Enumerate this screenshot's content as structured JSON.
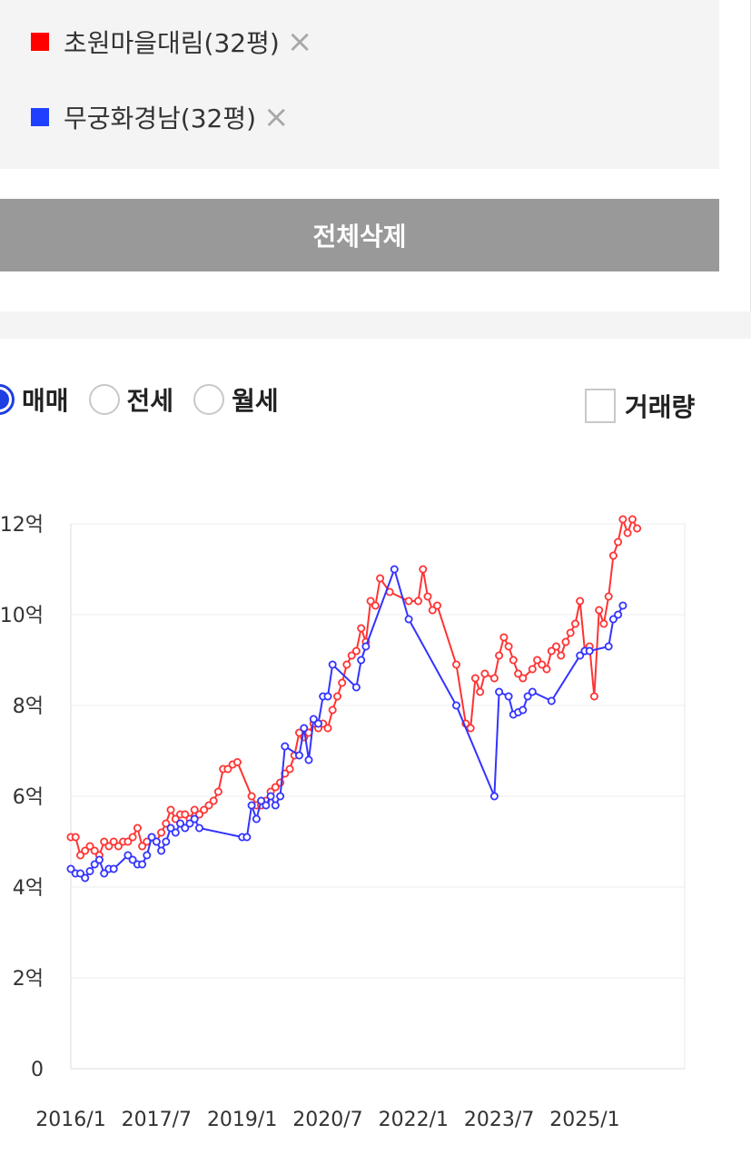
{
  "compare": {
    "items": [
      {
        "label": "초원마을대림(32평)",
        "color": "#ff0000"
      },
      {
        "label": "무궁화경남(32평)",
        "color": "#1f3fff"
      }
    ],
    "remove_icon": "×",
    "delete_all_label": "전체삭제"
  },
  "controls": {
    "options": [
      {
        "label": "매매",
        "checked": true
      },
      {
        "label": "전세",
        "checked": false
      },
      {
        "label": "월세",
        "checked": false
      }
    ],
    "volume_label": "거래량",
    "volume_checked": false
  },
  "chart_data": {
    "type": "line",
    "x_unit": "year-month",
    "xlim": [
      "2016-01",
      "2026-10"
    ],
    "ylim": [
      0,
      12
    ],
    "y_ticks": [
      {
        "value": 0,
        "label": "0"
      },
      {
        "value": 2,
        "label": "2억"
      },
      {
        "value": 4,
        "label": "4억"
      },
      {
        "value": 6,
        "label": "6억"
      },
      {
        "value": 8,
        "label": "8억"
      },
      {
        "value": 10,
        "label": "10억"
      },
      {
        "value": 12,
        "label": "12억"
      }
    ],
    "x_ticks": [
      "2016/1",
      "2017/7",
      "2019/1",
      "2020/7",
      "2022/1",
      "2023/7",
      "2025/1"
    ],
    "grid": true,
    "series": [
      {
        "name": "초원마을대림(32평)",
        "color": "#ff3333",
        "points": [
          [
            "2016-01",
            5.1
          ],
          [
            "2016-02",
            5.1
          ],
          [
            "2016-03",
            4.7
          ],
          [
            "2016-04",
            4.8
          ],
          [
            "2016-05",
            4.9
          ],
          [
            "2016-06",
            4.8
          ],
          [
            "2016-07",
            4.7
          ],
          [
            "2016-08",
            5.0
          ],
          [
            "2016-09",
            4.9
          ],
          [
            "2016-10",
            5.0
          ],
          [
            "2016-11",
            4.9
          ],
          [
            "2016-12",
            5.0
          ],
          [
            "2017-01",
            5.0
          ],
          [
            "2017-02",
            5.1
          ],
          [
            "2017-03",
            5.3
          ],
          [
            "2017-04",
            4.9
          ],
          [
            "2017-05",
            5.0
          ],
          [
            "2017-06",
            5.1
          ],
          [
            "2017-07",
            5.0
          ],
          [
            "2017-08",
            5.2
          ],
          [
            "2017-09",
            5.4
          ],
          [
            "2017-10",
            5.7
          ],
          [
            "2017-11",
            5.5
          ],
          [
            "2017-12",
            5.6
          ],
          [
            "2018-01",
            5.6
          ],
          [
            "2018-02",
            5.5
          ],
          [
            "2018-03",
            5.7
          ],
          [
            "2018-04",
            5.6
          ],
          [
            "2018-05",
            5.7
          ],
          [
            "2018-06",
            5.8
          ],
          [
            "2018-07",
            5.9
          ],
          [
            "2018-08",
            6.1
          ],
          [
            "2018-09",
            6.6
          ],
          [
            "2018-10",
            6.6
          ],
          [
            "2018-11",
            6.7
          ],
          [
            "2018-12",
            6.75
          ],
          [
            "2019-03",
            6.0
          ],
          [
            "2019-04",
            5.8
          ],
          [
            "2019-05",
            5.8
          ],
          [
            "2019-06",
            5.9
          ],
          [
            "2019-07",
            6.1
          ],
          [
            "2019-08",
            6.2
          ],
          [
            "2019-09",
            6.3
          ],
          [
            "2019-10",
            6.5
          ],
          [
            "2019-11",
            6.6
          ],
          [
            "2019-12",
            6.9
          ],
          [
            "2020-01",
            7.4
          ],
          [
            "2020-02",
            7.3
          ],
          [
            "2020-03",
            7.4
          ],
          [
            "2020-04",
            7.6
          ],
          [
            "2020-05",
            7.5
          ],
          [
            "2020-06",
            7.6
          ],
          [
            "2020-07",
            7.5
          ],
          [
            "2020-08",
            7.9
          ],
          [
            "2020-09",
            8.2
          ],
          [
            "2020-10",
            8.5
          ],
          [
            "2020-11",
            8.9
          ],
          [
            "2020-12",
            9.1
          ],
          [
            "2021-01",
            9.2
          ],
          [
            "2021-02",
            9.7
          ],
          [
            "2021-03",
            9.4
          ],
          [
            "2021-04",
            10.3
          ],
          [
            "2021-05",
            10.2
          ],
          [
            "2021-06",
            10.8
          ],
          [
            "2021-08",
            10.5
          ],
          [
            "2021-12",
            10.3
          ],
          [
            "2022-02",
            10.3
          ],
          [
            "2022-03",
            11.0
          ],
          [
            "2022-04",
            10.4
          ],
          [
            "2022-05",
            10.1
          ],
          [
            "2022-06",
            10.2
          ],
          [
            "2022-10",
            8.9
          ],
          [
            "2022-12",
            7.6
          ],
          [
            "2023-01",
            7.5
          ],
          [
            "2023-02",
            8.6
          ],
          [
            "2023-03",
            8.3
          ],
          [
            "2023-04",
            8.7
          ],
          [
            "2023-06",
            8.6
          ],
          [
            "2023-07",
            9.1
          ],
          [
            "2023-08",
            9.5
          ],
          [
            "2023-09",
            9.3
          ],
          [
            "2023-10",
            9.0
          ],
          [
            "2023-11",
            8.7
          ],
          [
            "2023-12",
            8.6
          ],
          [
            "2024-02",
            8.8
          ],
          [
            "2024-03",
            9.0
          ],
          [
            "2024-04",
            8.9
          ],
          [
            "2024-05",
            8.8
          ],
          [
            "2024-06",
            9.2
          ],
          [
            "2024-07",
            9.3
          ],
          [
            "2024-08",
            9.1
          ],
          [
            "2024-09",
            9.4
          ],
          [
            "2024-10",
            9.6
          ],
          [
            "2024-11",
            9.8
          ],
          [
            "2024-12",
            10.3
          ],
          [
            "2025-01",
            9.2
          ],
          [
            "2025-02",
            9.3
          ],
          [
            "2025-03",
            8.2
          ],
          [
            "2025-04",
            10.1
          ],
          [
            "2025-05",
            9.8
          ],
          [
            "2025-06",
            10.4
          ],
          [
            "2025-07",
            11.3
          ],
          [
            "2025-08",
            11.6
          ],
          [
            "2025-09",
            12.1
          ],
          [
            "2025-10",
            11.8
          ],
          [
            "2025-11",
            12.1
          ],
          [
            "2025-12",
            11.9
          ]
        ]
      },
      {
        "name": "무궁화경남(32평)",
        "color": "#3333ff",
        "points": [
          [
            "2016-01",
            4.4
          ],
          [
            "2016-02",
            4.3
          ],
          [
            "2016-03",
            4.3
          ],
          [
            "2016-04",
            4.2
          ],
          [
            "2016-05",
            4.35
          ],
          [
            "2016-06",
            4.5
          ],
          [
            "2016-07",
            4.6
          ],
          [
            "2016-08",
            4.3
          ],
          [
            "2016-09",
            4.4
          ],
          [
            "2016-10",
            4.4
          ],
          [
            "2017-01",
            4.7
          ],
          [
            "2017-02",
            4.6
          ],
          [
            "2017-03",
            4.5
          ],
          [
            "2017-04",
            4.5
          ],
          [
            "2017-05",
            4.7
          ],
          [
            "2017-06",
            5.1
          ],
          [
            "2017-07",
            5.0
          ],
          [
            "2017-08",
            4.8
          ],
          [
            "2017-09",
            5.0
          ],
          [
            "2017-10",
            5.3
          ],
          [
            "2017-11",
            5.2
          ],
          [
            "2017-12",
            5.4
          ],
          [
            "2018-01",
            5.3
          ],
          [
            "2018-02",
            5.4
          ],
          [
            "2018-03",
            5.5
          ],
          [
            "2018-04",
            5.3
          ],
          [
            "2019-01",
            5.1
          ],
          [
            "2019-02",
            5.1
          ],
          [
            "2019-03",
            5.8
          ],
          [
            "2019-04",
            5.5
          ],
          [
            "2019-05",
            5.9
          ],
          [
            "2019-06",
            5.8
          ],
          [
            "2019-07",
            6.0
          ],
          [
            "2019-08",
            5.8
          ],
          [
            "2019-09",
            6.0
          ],
          [
            "2019-10",
            7.1
          ],
          [
            "2020-01",
            6.9
          ],
          [
            "2020-02",
            7.5
          ],
          [
            "2020-03",
            6.8
          ],
          [
            "2020-04",
            7.7
          ],
          [
            "2020-05",
            7.6
          ],
          [
            "2020-06",
            8.2
          ],
          [
            "2020-07",
            8.2
          ],
          [
            "2020-08",
            8.9
          ],
          [
            "2021-01",
            8.4
          ],
          [
            "2021-02",
            9.0
          ],
          [
            "2021-03",
            9.3
          ],
          [
            "2021-09",
            11.0
          ],
          [
            "2021-12",
            9.9
          ],
          [
            "2022-10",
            8.0
          ],
          [
            "2023-06",
            6.0
          ],
          [
            "2023-07",
            8.3
          ],
          [
            "2023-09",
            8.2
          ],
          [
            "2023-10",
            7.8
          ],
          [
            "2023-11",
            7.85
          ],
          [
            "2023-12",
            7.9
          ],
          [
            "2024-01",
            8.2
          ],
          [
            "2024-02",
            8.3
          ],
          [
            "2024-06",
            8.1
          ],
          [
            "2024-12",
            9.1
          ],
          [
            "2025-01",
            9.2
          ],
          [
            "2025-02",
            9.2
          ],
          [
            "2025-06",
            9.3
          ],
          [
            "2025-07",
            9.9
          ],
          [
            "2025-08",
            10.0
          ],
          [
            "2025-09",
            10.2
          ]
        ]
      }
    ]
  }
}
